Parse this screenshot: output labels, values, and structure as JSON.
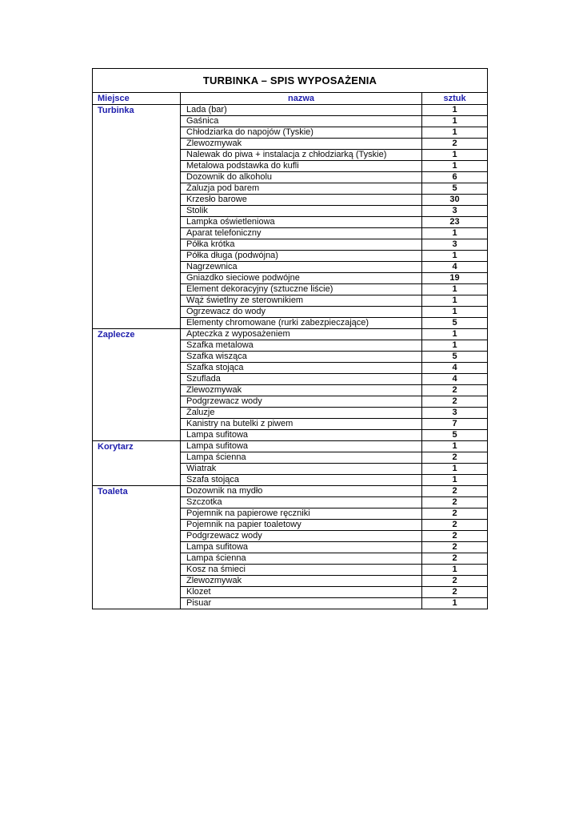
{
  "table": {
    "title": "TURBINKA – SPIS WYPOSAŻENIA",
    "accent_color": "#1f1fad",
    "columns": {
      "miejsce": "Miejsce",
      "nazwa": "nazwa",
      "sztuk": "sztuk"
    },
    "sections": [
      {
        "place": "Turbinka",
        "items": [
          {
            "name": "Lada (bar)",
            "qty": "1"
          },
          {
            "name": "Gaśnica",
            "qty": "1"
          },
          {
            "name": "Chłodziarka do napojów (Tyskie)",
            "qty": "1"
          },
          {
            "name": "Zlewozmywak",
            "qty": "2"
          },
          {
            "name": "Nalewak do piwa + instalacja z chłodziarką (Tyskie)",
            "qty": "1"
          },
          {
            "name": "Metalowa podstawka do kufli",
            "qty": "1"
          },
          {
            "name": "Dozownik do alkoholu",
            "qty": "6"
          },
          {
            "name": "Żaluzja pod barem",
            "qty": "5"
          },
          {
            "name": "Krzesło barowe",
            "qty": "30"
          },
          {
            "name": "Stolik",
            "qty": "3"
          },
          {
            "name": "Lampka oświetleniowa",
            "qty": "23"
          },
          {
            "name": "Aparat telefoniczny",
            "qty": "1"
          },
          {
            "name": "Półka krótka",
            "qty": "3"
          },
          {
            "name": "Półka długa (podwójna)",
            "qty": "1"
          },
          {
            "name": "Nagrzewnica",
            "qty": "4"
          },
          {
            "name": "Gniazdko sieciowe podwójne",
            "qty": "19"
          },
          {
            "name": "Element dekoracyjny (sztuczne liście)",
            "qty": "1"
          },
          {
            "name": "Wąż świetlny ze sterownikiem",
            "qty": "1"
          },
          {
            "name": "Ogrzewacz do wody",
            "qty": "1"
          },
          {
            "name": "Elementy chromowane (rurki zabezpieczające)",
            "qty": "5"
          }
        ]
      },
      {
        "place": "Zaplecze",
        "items": [
          {
            "name": "Apteczka z wyposażeniem",
            "qty": "1"
          },
          {
            "name": "Szafka metalowa",
            "qty": "1"
          },
          {
            "name": "Szafka wisząca",
            "qty": "5"
          },
          {
            "name": "Szafka stojąca",
            "qty": "4"
          },
          {
            "name": "Szuflada",
            "qty": "4"
          },
          {
            "name": "Zlewozmywak",
            "qty": "2"
          },
          {
            "name": "Podgrzewacz wody",
            "qty": "2"
          },
          {
            "name": "Żaluzje",
            "qty": "3"
          },
          {
            "name": "Kanistry na butelki z piwem",
            "qty": "7"
          },
          {
            "name": "Lampa sufitowa",
            "qty": "5"
          }
        ]
      },
      {
        "place": "Korytarz",
        "items": [
          {
            "name": "Lampa sufitowa",
            "qty": "1"
          },
          {
            "name": "Lampa ścienna",
            "qty": "2"
          },
          {
            "name": "Wiatrak",
            "qty": "1"
          },
          {
            "name": "Szafa stojąca",
            "qty": "1"
          }
        ]
      },
      {
        "place": "Toaleta",
        "items": [
          {
            "name": "Dozownik na mydło",
            "qty": "2"
          },
          {
            "name": "Szczotka",
            "qty": "2"
          },
          {
            "name": "Pojemnik na papierowe ręczniki",
            "qty": "2"
          },
          {
            "name": "Pojemnik na papier toaletowy",
            "qty": "2"
          },
          {
            "name": "Podgrzewacz wody",
            "qty": "2"
          },
          {
            "name": "Lampa sufitowa",
            "qty": "2"
          },
          {
            "name": "Lampa ścienna",
            "qty": "2"
          },
          {
            "name": "Kosz na śmieci",
            "qty": "1"
          },
          {
            "name": "Zlewozmywak",
            "qty": "2"
          },
          {
            "name": "Klozet",
            "qty": "2"
          },
          {
            "name": "Pisuar",
            "qty": "1"
          }
        ]
      }
    ]
  }
}
